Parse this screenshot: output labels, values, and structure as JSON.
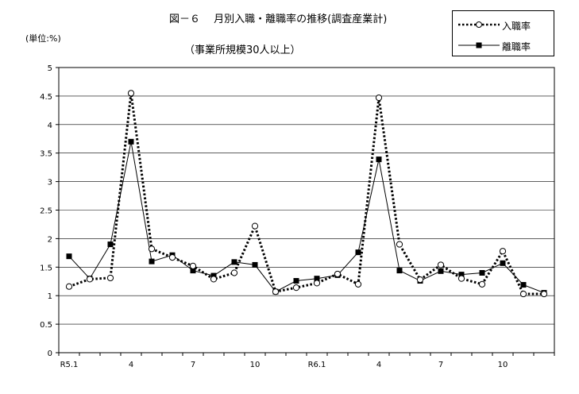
{
  "title": "図－６　 月別入職・離職率の推移(調査産業計)",
  "subtitle": "（事業所規模30人以上）",
  "unit_label": "(単位:%)",
  "legend": {
    "items": [
      {
        "label": "入職率",
        "style": "dotted",
        "marker": "open-circle"
      },
      {
        "label": "離職率",
        "style": "solid",
        "marker": "filled-square"
      }
    ]
  },
  "chart_data": {
    "type": "line",
    "title": "図－６　 月別入職・離職率の推移(調査産業計)",
    "subtitle": "（事業所規模30人以上）",
    "xlabel": "",
    "ylabel": "(単位:%)",
    "x_tick_labels": [
      "R5.1",
      "",
      "",
      "4",
      "",
      "",
      "7",
      "",
      "",
      "10",
      "",
      "",
      "R6.1",
      "",
      "",
      "4",
      "",
      "",
      "7",
      "",
      "",
      "10",
      "",
      ""
    ],
    "y_ticks": [
      "0",
      "0.5",
      "1",
      "1.5",
      "2",
      "2.5",
      "3",
      "3.5",
      "4",
      "4.5",
      "5"
    ],
    "ylim": [
      0,
      5
    ],
    "grid": "horizontal",
    "legend_position": "top-right",
    "series": [
      {
        "name": "入職率",
        "color": "#000000",
        "values": [
          1.16,
          1.29,
          1.31,
          4.55,
          1.82,
          1.67,
          1.52,
          1.29,
          1.4,
          2.22,
          1.07,
          1.14,
          1.22,
          1.38,
          1.2,
          4.47,
          1.9,
          1.28,
          1.54,
          1.3,
          1.2,
          1.78,
          1.03,
          1.03
        ]
      },
      {
        "name": "離職率",
        "color": "#000000",
        "values": [
          1.69,
          1.3,
          1.9,
          3.7,
          1.6,
          1.71,
          1.44,
          1.35,
          1.59,
          1.54,
          1.07,
          1.26,
          1.3,
          1.36,
          1.76,
          3.39,
          1.44,
          1.26,
          1.43,
          1.37,
          1.4,
          1.57,
          1.19,
          1.05
        ]
      }
    ]
  }
}
